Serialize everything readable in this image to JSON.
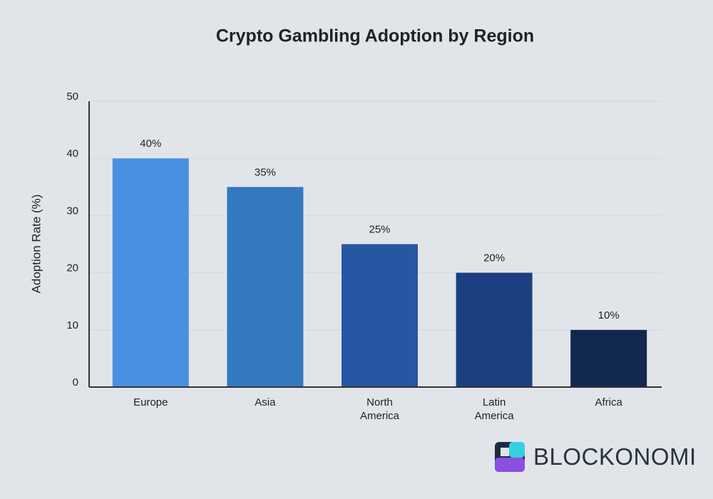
{
  "chart_data": {
    "type": "bar",
    "title": "Crypto Gambling Adoption by Region",
    "ylabel": "Adoption Rate (%)",
    "categories": [
      "Europe",
      "Asia",
      "North America",
      "Latin America",
      "Africa"
    ],
    "values": [
      40,
      35,
      25,
      20,
      10
    ],
    "value_labels": [
      "40%",
      "35%",
      "25%",
      "20%",
      "10%"
    ],
    "colors": [
      "#4a90e2",
      "#3479bf",
      "#2757a3",
      "#1c3f82",
      "#13284f"
    ],
    "ylim": [
      0,
      50
    ],
    "yticks": [
      0,
      10,
      20,
      30,
      40,
      50
    ],
    "grid": true
  },
  "logo": {
    "text": "BLOCKONOMI"
  }
}
